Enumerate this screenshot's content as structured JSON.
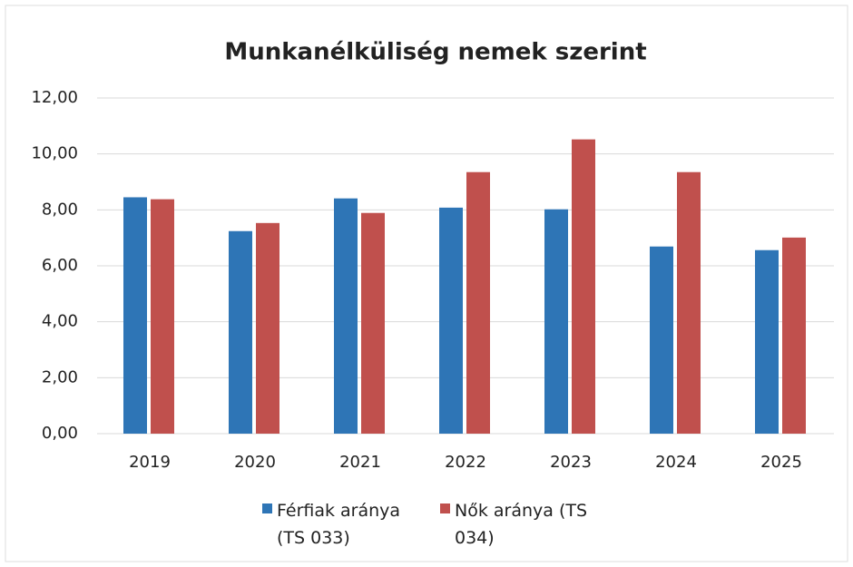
{
  "chart_data": {
    "type": "bar",
    "title": "Munkanélküliség nemek szerint",
    "categories": [
      "2019",
      "2020",
      "2021",
      "2022",
      "2023",
      "2024",
      "2025"
    ],
    "series": [
      {
        "name": "Férfiak aránya (TS 033)",
        "color": "#2e75b6",
        "values": [
          8.45,
          7.24,
          8.41,
          8.08,
          8.02,
          6.69,
          6.56
        ]
      },
      {
        "name": "Nők aránya (TS 034)",
        "color": "#c0504d",
        "values": [
          8.38,
          7.53,
          7.89,
          9.35,
          10.52,
          9.35,
          7.01
        ]
      }
    ],
    "ylim": [
      0,
      12
    ],
    "yticks": [
      {
        "value": 0,
        "label": "0,00"
      },
      {
        "value": 2,
        "label": "2,00"
      },
      {
        "value": 4,
        "label": "4,00"
      },
      {
        "value": 6,
        "label": "6,00"
      },
      {
        "value": 8,
        "label": "8,00"
      },
      {
        "value": 10,
        "label": "10,00"
      },
      {
        "value": 12,
        "label": "12,00"
      }
    ],
    "grid": true,
    "legend": "bottom"
  }
}
